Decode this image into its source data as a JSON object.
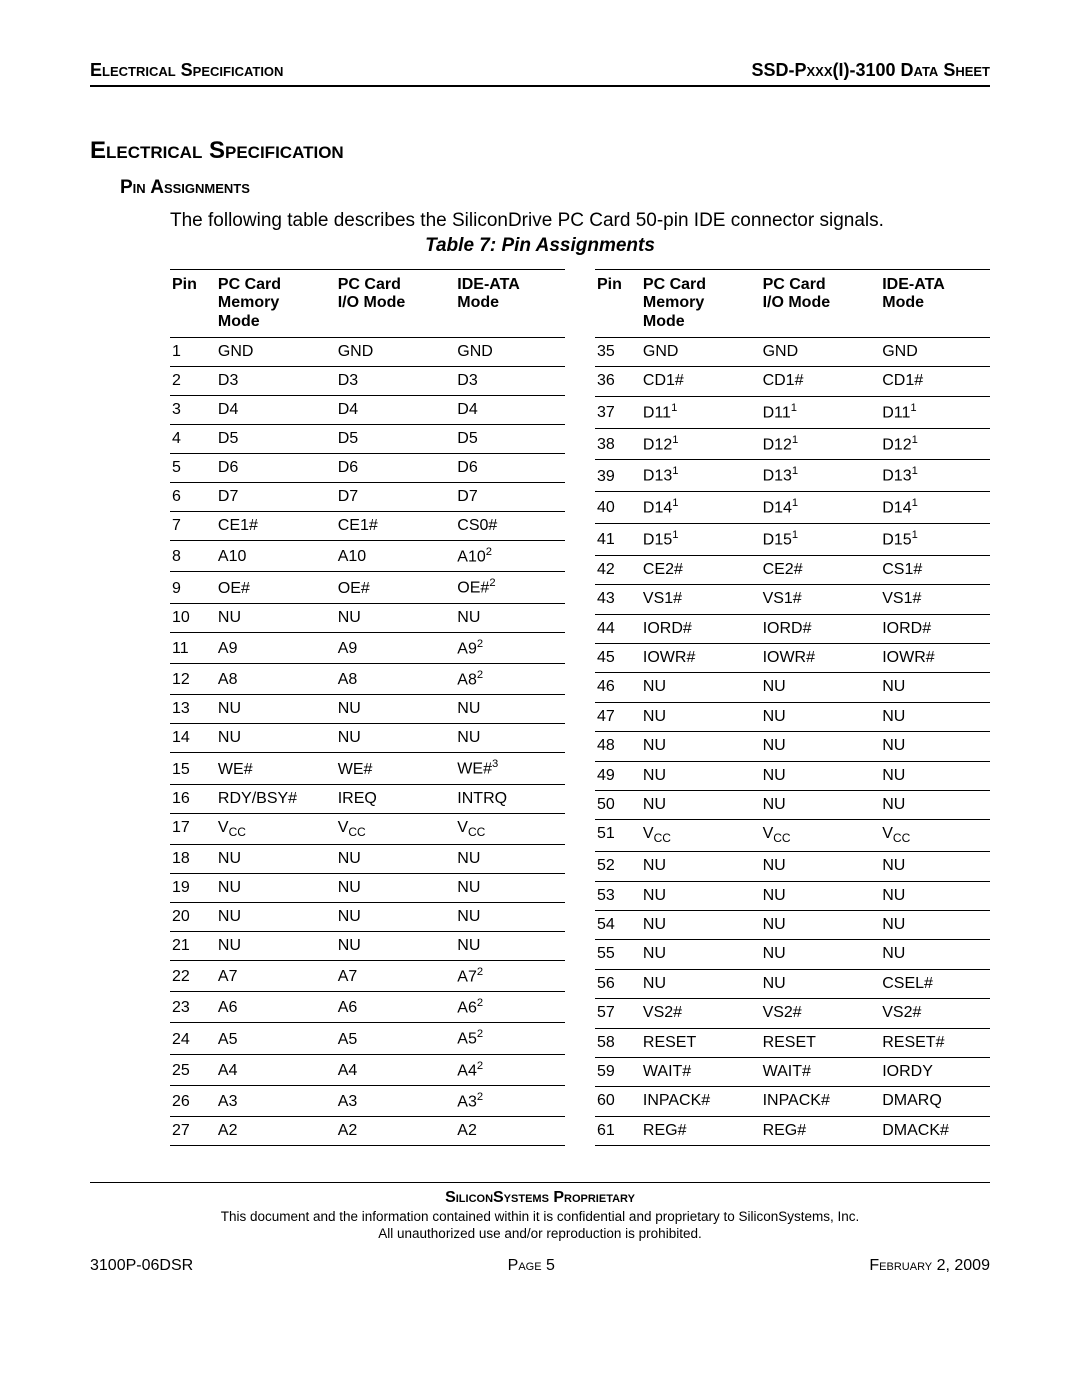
{
  "header": {
    "left": "Electrical Specification",
    "right": "SSD-Pxxx(I)-3100 Data Sheet"
  },
  "section": {
    "title": "Electrical Specification",
    "subtitle": "Pin Assignments",
    "body": "The following table describes the SiliconDrive PC Card 50-pin IDE connector signals.",
    "table_caption": "Table 7:  Pin Assignments"
  },
  "columns": {
    "pin": "Pin",
    "mem_l1": "PC Card",
    "mem_l2": "Memory",
    "mem_l3": "Mode",
    "io_l1": "PC Card",
    "io_l2": "I/O Mode",
    "ide_l1": "IDE-ATA",
    "ide_l2": "Mode"
  },
  "left_rows": [
    {
      "pin": "1",
      "mem": "GND",
      "io": "GND",
      "ide": "GND"
    },
    {
      "pin": "2",
      "mem": "D3",
      "io": "D3",
      "ide": "D3"
    },
    {
      "pin": "3",
      "mem": "D4",
      "io": "D4",
      "ide": "D4"
    },
    {
      "pin": "4",
      "mem": "D5",
      "io": "D5",
      "ide": "D5"
    },
    {
      "pin": "5",
      "mem": "D6",
      "io": "D6",
      "ide": "D6"
    },
    {
      "pin": "6",
      "mem": "D7",
      "io": "D7",
      "ide": "D7"
    },
    {
      "pin": "7",
      "mem": "CE1#",
      "io": "CE1#",
      "ide": "CS0#"
    },
    {
      "pin": "8",
      "mem": "A10",
      "io": "A10",
      "ide": "A10",
      "ide_sup": "2"
    },
    {
      "pin": "9",
      "mem": "OE#",
      "io": "OE#",
      "ide": "OE#",
      "ide_sup": "2"
    },
    {
      "pin": "10",
      "mem": "NU",
      "io": "NU",
      "ide": "NU"
    },
    {
      "pin": "11",
      "mem": "A9",
      "io": "A9",
      "ide": "A9",
      "ide_sup": "2"
    },
    {
      "pin": "12",
      "mem": "A8",
      "io": "A8",
      "ide": "A8",
      "ide_sup": "2"
    },
    {
      "pin": "13",
      "mem": "NU",
      "io": "NU",
      "ide": "NU"
    },
    {
      "pin": "14",
      "mem": "NU",
      "io": "NU",
      "ide": "NU"
    },
    {
      "pin": "15",
      "mem": "WE#",
      "io": "WE#",
      "ide": "WE#",
      "ide_sup": "3"
    },
    {
      "pin": "16",
      "mem": "RDY/BSY#",
      "io": "IREQ",
      "ide": "INTRQ"
    },
    {
      "pin": "17",
      "mem": "V",
      "mem_sub": "CC",
      "io": "V",
      "io_sub": "CC",
      "ide": "V",
      "ide_sub": "CC"
    },
    {
      "pin": "18",
      "mem": "NU",
      "io": "NU",
      "ide": "NU"
    },
    {
      "pin": "19",
      "mem": "NU",
      "io": "NU",
      "ide": "NU"
    },
    {
      "pin": "20",
      "mem": "NU",
      "io": "NU",
      "ide": "NU"
    },
    {
      "pin": "21",
      "mem": "NU",
      "io": "NU",
      "ide": "NU"
    },
    {
      "pin": "22",
      "mem": "A7",
      "io": "A7",
      "ide": "A7",
      "ide_sup": "2"
    },
    {
      "pin": "23",
      "mem": "A6",
      "io": "A6",
      "ide": "A6",
      "ide_sup": "2"
    },
    {
      "pin": "24",
      "mem": "A5",
      "io": "A5",
      "ide": "A5",
      "ide_sup": "2"
    },
    {
      "pin": "25",
      "mem": "A4",
      "io": "A4",
      "ide": "A4",
      "ide_sup": "2"
    },
    {
      "pin": "26",
      "mem": "A3",
      "io": "A3",
      "ide": "A3",
      "ide_sup": "2"
    },
    {
      "pin": "27",
      "mem": "A2",
      "io": "A2",
      "ide": "A2"
    }
  ],
  "right_rows": [
    {
      "pin": "35",
      "mem": "GND",
      "io": "GND",
      "ide": "GND"
    },
    {
      "pin": "36",
      "mem": "CD1#",
      "io": "CD1#",
      "ide": "CD1#"
    },
    {
      "pin": "37",
      "mem": "D11",
      "mem_sup": "1",
      "io": "D11",
      "io_sup": "1",
      "ide": "D11",
      "ide_sup": "1"
    },
    {
      "pin": "38",
      "mem": "D12",
      "mem_sup": "1",
      "io": "D12",
      "io_sup": "1",
      "ide": "D12",
      "ide_sup": "1"
    },
    {
      "pin": "39",
      "mem": "D13",
      "mem_sup": "1",
      "io": "D13",
      "io_sup": "1",
      "ide": "D13",
      "ide_sup": "1"
    },
    {
      "pin": "40",
      "mem": "D14",
      "mem_sup": "1",
      "io": "D14",
      "io_sup": "1",
      "ide": "D14",
      "ide_sup": "1"
    },
    {
      "pin": "41",
      "mem": "D15",
      "mem_sup": "1",
      "io": "D15",
      "io_sup": "1",
      "ide": "D15",
      "ide_sup": "1"
    },
    {
      "pin": "42",
      "mem": "CE2#",
      "io": "CE2#",
      "ide": "CS1#"
    },
    {
      "pin": "43",
      "mem": "VS1#",
      "io": "VS1#",
      "ide": "VS1#"
    },
    {
      "pin": "44",
      "mem": "IORD#",
      "io": "IORD#",
      "ide": "IORD#"
    },
    {
      "pin": "45",
      "mem": "IOWR#",
      "io": "IOWR#",
      "ide": "IOWR#"
    },
    {
      "pin": "46",
      "mem": "NU",
      "io": "NU",
      "ide": "NU"
    },
    {
      "pin": "47",
      "mem": "NU",
      "io": "NU",
      "ide": "NU"
    },
    {
      "pin": "48",
      "mem": "NU",
      "io": "NU",
      "ide": "NU"
    },
    {
      "pin": "49",
      "mem": "NU",
      "io": "NU",
      "ide": "NU"
    },
    {
      "pin": "50",
      "mem": "NU",
      "io": "NU",
      "ide": "NU"
    },
    {
      "pin": "51",
      "mem": "V",
      "mem_sub": "CC",
      "io": "V",
      "io_sub": "CC",
      "ide": "V",
      "ide_sub": "CC"
    },
    {
      "pin": "52",
      "mem": "NU",
      "io": "NU",
      "ide": "NU"
    },
    {
      "pin": "53",
      "mem": "NU",
      "io": "NU",
      "ide": "NU"
    },
    {
      "pin": "54",
      "mem": "NU",
      "io": "NU",
      "ide": "NU"
    },
    {
      "pin": "55",
      "mem": "NU",
      "io": "NU",
      "ide": "NU"
    },
    {
      "pin": "56",
      "mem": "NU",
      "io": "NU",
      "ide": "CSEL#"
    },
    {
      "pin": "57",
      "mem": "VS2#",
      "io": "VS2#",
      "ide": "VS2#"
    },
    {
      "pin": "58",
      "mem": "RESET",
      "io": "RESET",
      "ide": "RESET#"
    },
    {
      "pin": "59",
      "mem": "WAIT#",
      "io": "WAIT#",
      "ide": "IORDY"
    },
    {
      "pin": "60",
      "mem": "INPACK#",
      "io": "INPACK#",
      "ide": "DMARQ"
    },
    {
      "pin": "61",
      "mem": "REG#",
      "io": "REG#",
      "ide": "DMACK#"
    }
  ],
  "footer": {
    "proprietary": "SiliconSystems Proprietary",
    "note1": "This document and the information contained within it is confidential and proprietary to SiliconSystems, Inc.",
    "note2": "All unauthorized use and/or reproduction is prohibited.",
    "doc_num": "3100P-06DSR",
    "page": "Page 5",
    "date": "February 2, 2009"
  }
}
